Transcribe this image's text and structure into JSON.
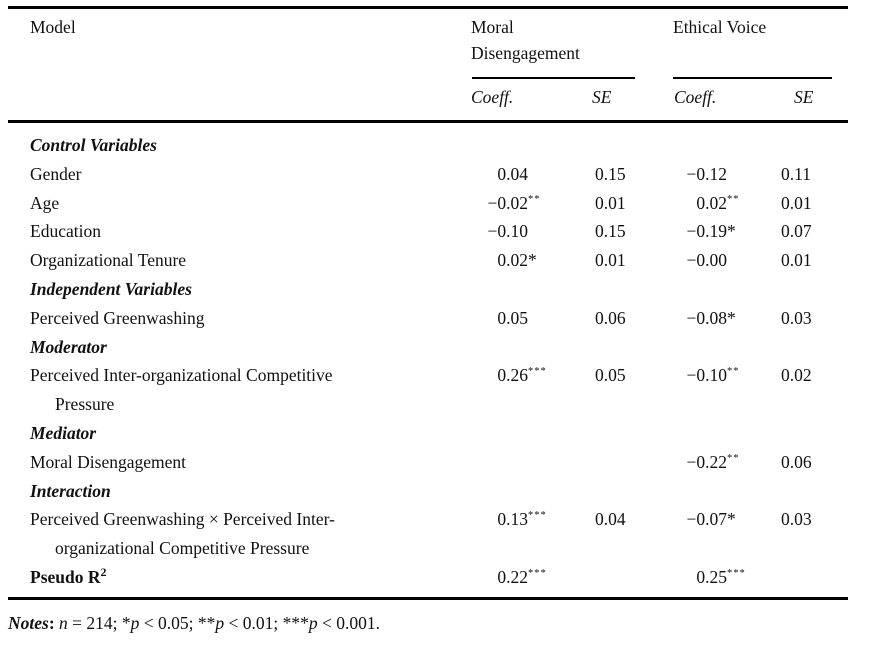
{
  "header": {
    "model_col": "Model",
    "group1": "Moral Disengagement",
    "group2": "Ethical Voice",
    "sub_coeff": "Coeff.",
    "sub_se": "SE"
  },
  "table": {
    "rows": [
      {
        "type": "section",
        "label": "Control Variables"
      },
      {
        "type": "data",
        "label": "Gender",
        "cells": {
          "md_coeff": "0.04",
          "md_stars": "",
          "md_se": "0.15",
          "ev_coeff": "−0.12",
          "ev_stars": "",
          "ev_se": "0.11"
        }
      },
      {
        "type": "data",
        "label": "Age",
        "cells": {
          "md_coeff": "−0.02",
          "md_stars": "**",
          "md_se": "0.01",
          "ev_coeff": "0.02",
          "ev_stars": "**",
          "ev_se": "0.01"
        }
      },
      {
        "type": "data",
        "label": "Education",
        "cells": {
          "md_coeff": "−0.10",
          "md_stars": "",
          "md_se": "0.15",
          "ev_coeff": "−0.19",
          "ev_stars": "*",
          "ev_se": "0.07"
        }
      },
      {
        "type": "data",
        "label": "Organizational Tenure",
        "cells": {
          "md_coeff": "0.02",
          "md_stars": "*",
          "md_se": "0.01",
          "ev_coeff": "−0.00",
          "ev_stars": "",
          "ev_se": "0.01"
        }
      },
      {
        "type": "section",
        "label": "Independent Variables"
      },
      {
        "type": "data",
        "label": "Perceived Greenwashing",
        "cells": {
          "md_coeff": "0.05",
          "md_stars": "",
          "md_se": "0.06",
          "ev_coeff": "−0.08",
          "ev_stars": "*",
          "ev_se": "0.03"
        }
      },
      {
        "type": "section",
        "label": "Moderator"
      },
      {
        "type": "data",
        "label": "Perceived Inter-organizational Competitive",
        "label2": "Pressure",
        "cells": {
          "md_coeff": "0.26",
          "md_stars": "***",
          "md_se": "0.05",
          "ev_coeff": "−0.10",
          "ev_stars": "**",
          "ev_se": "0.02"
        }
      },
      {
        "type": "section",
        "label": "Mediator"
      },
      {
        "type": "data",
        "label": "Moral Disengagement",
        "cells": {
          "ev_coeff": "−0.22",
          "ev_stars": "**",
          "ev_se": "0.06"
        }
      },
      {
        "type": "section",
        "label": "Interaction"
      },
      {
        "type": "data",
        "label": "Perceived Greenwashing × Perceived Inter-",
        "label2": "organizational Competitive Pressure",
        "cells": {
          "md_coeff": "0.13",
          "md_stars": "***",
          "md_se": "0.04",
          "ev_coeff": "−0.07",
          "ev_stars": "*",
          "ev_se": "0.03"
        }
      },
      {
        "type": "data",
        "label": "Pseudo R",
        "label_sup": "2",
        "bold": true,
        "cells": {
          "md_coeff": "0.22",
          "md_stars": "***",
          "ev_coeff": "0.25",
          "ev_stars": "***"
        }
      }
    ]
  },
  "notes": {
    "tokens": [
      {
        "text": "Notes",
        "style": "bold-italic"
      },
      {
        "text": ": ",
        "style": "bold"
      },
      {
        "text": "n",
        "style": "italic"
      },
      {
        "text": " = 214; *",
        "style": "normal"
      },
      {
        "text": "p",
        "style": "italic"
      },
      {
        "text": " < 0.05; **",
        "style": "normal"
      },
      {
        "text": "p",
        "style": "italic"
      },
      {
        "text": " < 0.01; ***",
        "style": "normal"
      },
      {
        "text": "p",
        "style": "italic"
      },
      {
        "text": " < 0.001.",
        "style": "normal"
      }
    ]
  },
  "colors": {
    "text": "#111111",
    "rule": "#000000",
    "background": "#ffffff"
  }
}
